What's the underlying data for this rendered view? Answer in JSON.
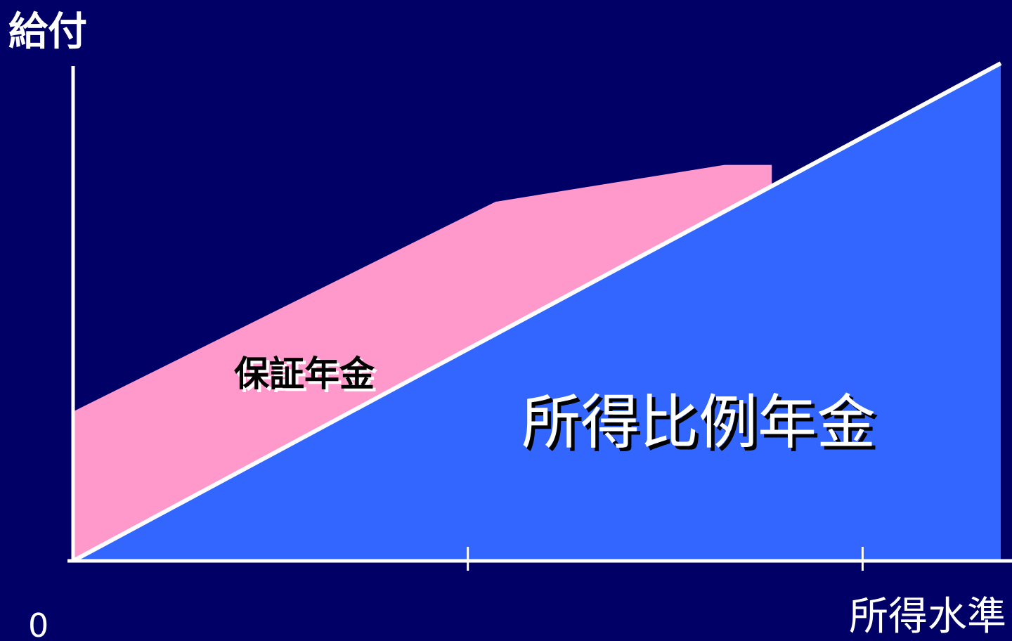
{
  "colors": {
    "background": "#000066",
    "guarantee_fill": "#FF99CC",
    "proportional_fill": "#3366FF",
    "axis": "#FFFFFF",
    "guarantee_text": "#000000",
    "proportional_text": "#FFFFFF"
  },
  "chart_data": {
    "type": "area",
    "ylabel": "給付",
    "xlabel": "所得水準",
    "origin_label": "0",
    "x_ticks": [
      1,
      2
    ],
    "xlim": [
      0,
      2.35
    ],
    "ylim": [
      0,
      1.2
    ],
    "series": [
      {
        "name": "保証年金",
        "points": [
          [
            0,
            0.36
          ],
          [
            1.07,
            0.866
          ],
          [
            1.65,
            0.955
          ],
          [
            1.77,
            0.955
          ]
        ]
      },
      {
        "name": "所得比例年金",
        "points": [
          [
            0,
            0
          ],
          [
            2.35,
            1.2
          ]
        ]
      }
    ]
  }
}
